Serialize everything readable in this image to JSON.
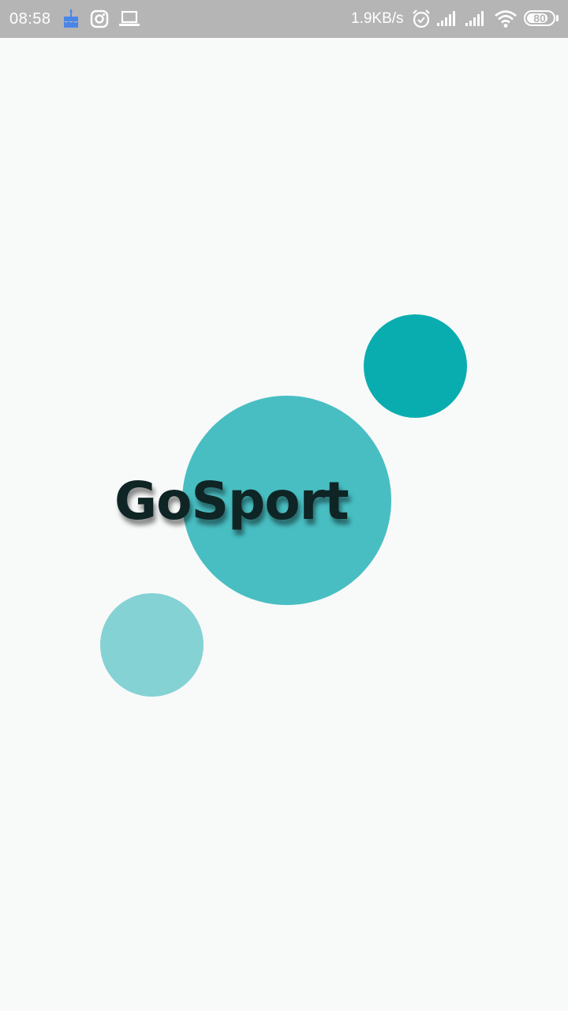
{
  "status_bar": {
    "time": "08:58",
    "network_speed": "1.9KB/s",
    "battery_level": "80",
    "battery_fraction": 0.8,
    "icons": [
      "cake-notification-icon",
      "instagram-icon",
      "laptop-icon",
      "alarm-icon",
      "signal-icon",
      "signal-icon",
      "wifi-icon",
      "battery-icon"
    ]
  },
  "splash": {
    "logo_text": "GoSport",
    "colors": {
      "background": "#f8f9f9",
      "large_circle": "#48bec2",
      "small_circle_top": "#0aadaf",
      "small_circle_bottom": "#84d2d4",
      "logo_text": "#0f2424",
      "status_bar": "#b5b5b5"
    }
  }
}
